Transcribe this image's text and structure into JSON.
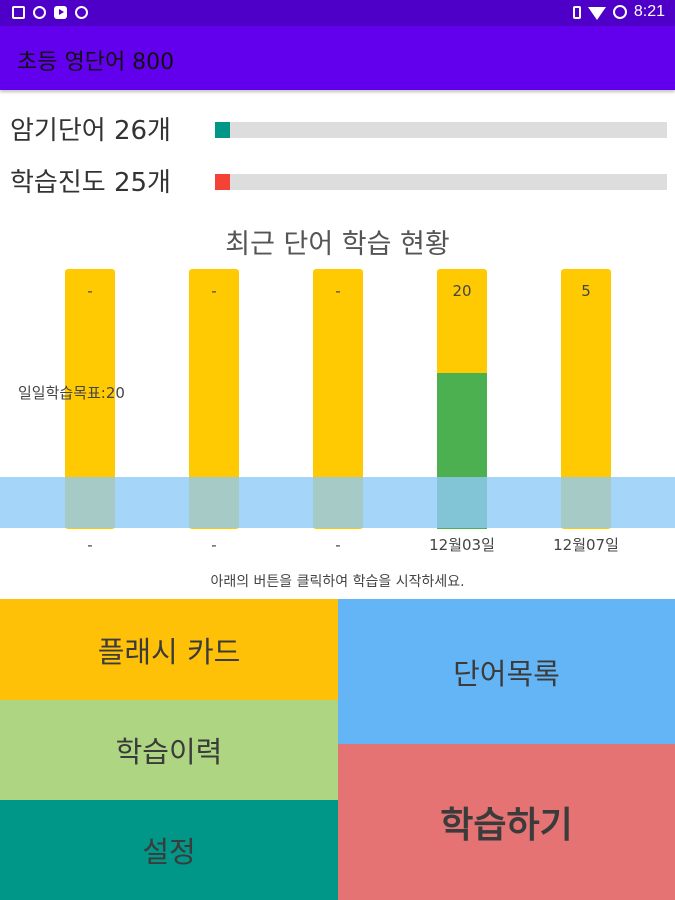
{
  "status_bar": {
    "time": "8:21",
    "left_icons": [
      "image-icon",
      "facebook-icon",
      "youtube-icon",
      "target-icon"
    ],
    "right_icons": [
      "vibrate-icon",
      "wifi-icon",
      "battery-icon"
    ]
  },
  "app_bar": {
    "title": "초등 영단어 800"
  },
  "progress": [
    {
      "label": "암기단어 26개",
      "value": 26,
      "max": 800,
      "color": "#009688"
    },
    {
      "label": "학습진도 25개",
      "value": 25,
      "max": 800,
      "color": "#f44336"
    }
  ],
  "chart_data": {
    "type": "bar",
    "title": "최근 단어 학습 현황",
    "categories": [
      "-",
      "-",
      "-",
      "12월03일",
      "12월07일"
    ],
    "values": [
      null,
      null,
      null,
      20,
      5
    ],
    "value_labels": [
      "-",
      "-",
      "-",
      "20",
      "5"
    ],
    "goal": 20,
    "goal_label": "일일학습목표:20",
    "ylim": [
      0,
      25
    ],
    "colors": {
      "background_bar": "#ffca02",
      "goal_met": "#4caf50",
      "goal_band": "#90caf9"
    }
  },
  "hint_text": "아래의 버튼을 클릭하여 학습을 시작하세요.",
  "buttons": {
    "flash_card": "플래시 카드",
    "history": "학습이력",
    "settings": "설정",
    "word_list": "단어목록",
    "study": "학습하기"
  }
}
